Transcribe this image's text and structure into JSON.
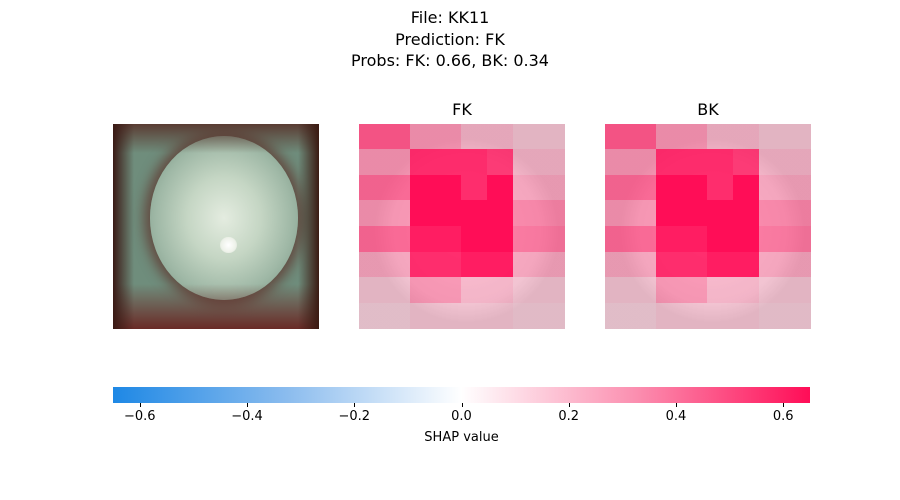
{
  "title": {
    "file": "File: KK11",
    "prediction": "Prediction: FK",
    "probs": "Probs: FK: 0.66, BK: 0.34"
  },
  "panels": [
    {
      "title": "FK",
      "shap": [
        [
          0.4,
          0.2,
          0.1,
          0.1,
          0.05
        ],
        [
          0.2,
          0.55,
          0.55,
          0.5,
          0.1
        ],
        [
          0.35,
          0.7,
          0.55,
          0.7,
          0.15
        ],
        [
          0.2,
          0.7,
          0.75,
          0.7,
          0.25
        ],
        [
          0.35,
          0.6,
          0.8,
          0.75,
          0.3
        ],
        [
          0.15,
          0.55,
          0.6,
          0.6,
          0.15
        ],
        [
          0.05,
          0.2,
          0.1,
          0.1,
          0.05
        ],
        [
          0.02,
          0.05,
          0.05,
          0.05,
          0.03
        ]
      ]
    },
    {
      "title": "BK",
      "shap": [
        [
          0.4,
          0.2,
          0.1,
          0.1,
          0.05
        ],
        [
          0.2,
          0.55,
          0.55,
          0.5,
          0.1
        ],
        [
          0.35,
          0.7,
          0.55,
          0.7,
          0.15
        ],
        [
          0.2,
          0.7,
          0.75,
          0.7,
          0.25
        ],
        [
          0.35,
          0.6,
          0.8,
          0.75,
          0.3
        ],
        [
          0.15,
          0.55,
          0.6,
          0.6,
          0.15
        ],
        [
          0.05,
          0.2,
          0.1,
          0.1,
          0.05
        ],
        [
          0.02,
          0.05,
          0.05,
          0.05,
          0.03
        ]
      ]
    }
  ],
  "colorbar": {
    "label": "SHAP value",
    "min": -0.65,
    "max": 0.65,
    "ticks": [
      -0.6,
      -0.4,
      -0.2,
      0.0,
      0.2,
      0.4,
      0.6
    ],
    "tick_labels": [
      "−0.6",
      "−0.4",
      "−0.2",
      "0.0",
      "0.2",
      "0.4",
      "0.6"
    ],
    "colors": {
      "negative": "#1e88e5",
      "zero": "#ffffff",
      "positive": "#ff0d57"
    }
  }
}
